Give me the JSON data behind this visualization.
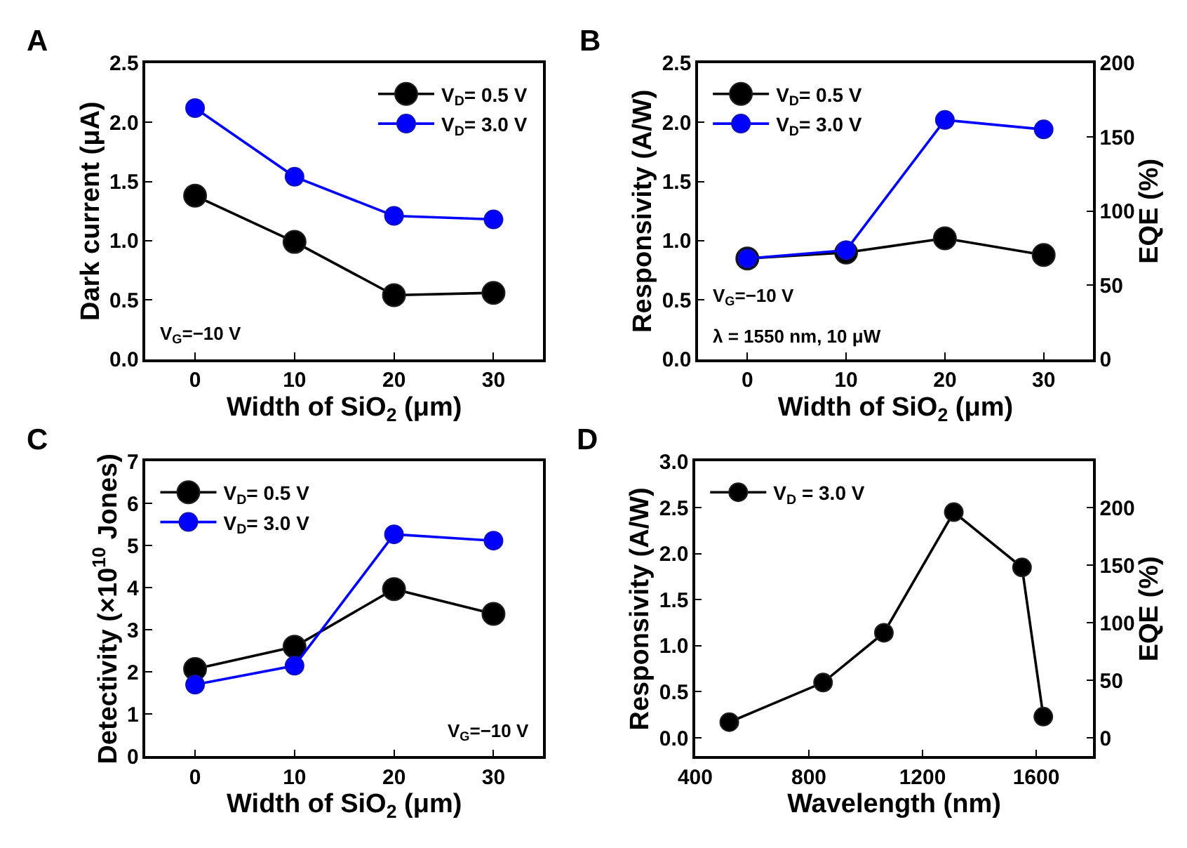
{
  "chart_data": [
    {
      "type": "line",
      "title": "A",
      "xlabel": "Width of SiO$_{2}$ (μm)",
      "ylabel": "Dark current (μA)",
      "x": [
        0,
        10,
        20,
        30
      ],
      "xlim": [
        -5,
        35
      ],
      "xticks": [
        0,
        10,
        20,
        30
      ],
      "ylim": [
        0,
        2.5
      ],
      "yticks": [
        {
          "value": 0,
          "label": "0.0"
        },
        0.5,
        {
          "value": 1,
          "label": "1.0"
        },
        1.5,
        {
          "value": 2,
          "label": "2.0"
        },
        2.5
      ],
      "marker": "circle",
      "line_style": "solid",
      "legend": "top right",
      "annotations": [
        "V$_{G}$=−10 V"
      ],
      "series": [
        {
          "name": "V$_{D}$= 0.5 V",
          "color": "#000000",
          "values": [
            1.38,
            0.99,
            0.54,
            0.56
          ]
        },
        {
          "name": "V$_{D}$= 3.0 V",
          "color": "#0000ff",
          "values": [
            2.12,
            1.54,
            1.21,
            1.18
          ]
        }
      ]
    },
    {
      "type": "line",
      "title": "B",
      "xlabel": "Width of SiO$_{2}$ (μm)",
      "ylabel": "Responsivity (A/W)",
      "y2label": "EQE (%)",
      "x": [
        0,
        10,
        20,
        30
      ],
      "xlim": [
        -5,
        35
      ],
      "xticks": [
        0,
        10,
        20,
        30
      ],
      "ylim": [
        0,
        2.5
      ],
      "yticks": [
        {
          "value": 0,
          "label": "0.0"
        },
        0.5,
        {
          "value": 1,
          "label": "1.0"
        },
        1.5,
        {
          "value": 2,
          "label": "2.0"
        },
        2.5
      ],
      "y2lim": [
        0,
        200
      ],
      "y2ticks": [
        0,
        50,
        100,
        150,
        200
      ],
      "marker": "circle",
      "line_style": "solid",
      "legend": "top left",
      "annotations": [
        "V$_{G}$=−10 V",
        "λ = 1550 nm, 10 μW"
      ],
      "series": [
        {
          "name": "V$_{D}$= 0.5 V",
          "color": "#000000",
          "values": [
            0.85,
            0.9,
            1.02,
            0.88
          ]
        },
        {
          "name": "V$_{D}$= 3.0 V",
          "color": "#0000ff",
          "values": [
            0.85,
            0.92,
            2.02,
            1.94
          ]
        }
      ]
    },
    {
      "type": "line",
      "title": "C",
      "xlabel": "Width of SiO$_{2}$ (μm)",
      "ylabel": "Detectivity (×10$^{10}$ Jones)",
      "x": [
        0,
        10,
        20,
        30
      ],
      "xlim": [
        -5,
        35
      ],
      "xticks": [
        0,
        10,
        20,
        30
      ],
      "ylim": [
        0,
        7
      ],
      "yticks": [
        0,
        1,
        2,
        3,
        4,
        5,
        6,
        7
      ],
      "marker": "circle",
      "line_style": "solid",
      "legend": "top left",
      "annotations": [
        "V$_{G}$=−10 V"
      ],
      "series": [
        {
          "name": "V$_{D}$= 0.5 V",
          "color": "#000000",
          "values": [
            2.07,
            2.6,
            3.97,
            3.38
          ]
        },
        {
          "name": "V$_{D}$= 3.0 V",
          "color": "#0000ff",
          "values": [
            1.7,
            2.15,
            5.27,
            5.12
          ]
        }
      ]
    },
    {
      "type": "line",
      "title": "D",
      "xlabel": "Wavelength (nm)",
      "ylabel": "Responsivity (A/W)",
      "y2label": "EQE (%)",
      "x": [
        520,
        850,
        1064,
        1310,
        1550,
        1625
      ],
      "xlim": [
        400,
        1800
      ],
      "xticks": [
        400,
        800,
        1200,
        1600
      ],
      "ylim": [
        -0.2,
        3.0
      ],
      "yticks": [
        {
          "value": 0,
          "label": "0.0"
        },
        0.5,
        {
          "value": 1,
          "label": "1.0"
        },
        1.5,
        {
          "value": 2,
          "label": "2.0"
        },
        2.5,
        {
          "value": 3,
          "label": "3.0"
        }
      ],
      "y2lim": [
        -16,
        240
      ],
      "y2ticks": [
        0,
        50,
        100,
        150,
        200
      ],
      "marker": "circle",
      "line_style": "solid",
      "legend": "top left",
      "series": [
        {
          "name": "V$_{D}$ = 3.0 V",
          "color": "#000000",
          "values": [
            0.17,
            0.6,
            1.14,
            2.45,
            1.85,
            0.23
          ]
        }
      ]
    }
  ]
}
